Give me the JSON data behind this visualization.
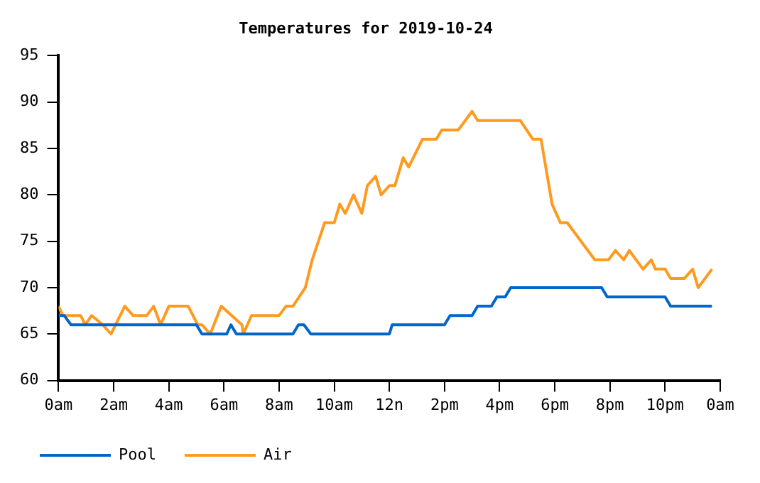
{
  "chart_data": {
    "type": "line",
    "title": "Temperatures for 2019-10-24",
    "xlim": [
      "2019-10-24T00:00",
      "2019-10-25T00:00"
    ],
    "xticks": [
      {
        "value": "2019-10-24T00:00",
        "label": "0am"
      },
      {
        "value": "2019-10-24T02:00",
        "label": "2am"
      },
      {
        "value": "2019-10-24T04:00",
        "label": "4am"
      },
      {
        "value": "2019-10-24T06:00",
        "label": "6am"
      },
      {
        "value": "2019-10-24T08:00",
        "label": "8am"
      },
      {
        "value": "2019-10-24T10:00",
        "label": "10am"
      },
      {
        "value": "2019-10-24T12:00",
        "label": "12n"
      },
      {
        "value": "2019-10-24T14:00",
        "label": "2pm"
      },
      {
        "value": "2019-10-24T16:00",
        "label": "4pm"
      },
      {
        "value": "2019-10-24T18:00",
        "label": "6pm"
      },
      {
        "value": "2019-10-24T20:00",
        "label": "8pm"
      },
      {
        "value": "2019-10-24T22:00",
        "label": "10pm"
      },
      {
        "value": "2019-10-25T00:00",
        "label": "0am"
      }
    ],
    "ylim": [
      60,
      95
    ],
    "yticks": [
      60,
      65,
      70,
      75,
      80,
      85,
      90,
      95
    ],
    "grid": false,
    "legend": "bottom left",
    "marker": "none",
    "line_style": "solid",
    "series": [
      {
        "name": "Pool",
        "color": "#0066cc",
        "x": [
          "2019-10-24T00:00",
          "2019-10-24T00:12",
          "2019-10-24T00:27",
          "2019-10-24T05:00",
          "2019-10-24T05:12",
          "2019-10-24T06:06",
          "2019-10-24T06:15",
          "2019-10-24T06:27",
          "2019-10-24T08:30",
          "2019-10-24T08:42",
          "2019-10-24T08:54",
          "2019-10-24T09:09",
          "2019-10-24T12:00",
          "2019-10-24T12:06",
          "2019-10-24T14:00",
          "2019-10-24T14:12",
          "2019-10-24T15:00",
          "2019-10-24T15:12",
          "2019-10-24T15:42",
          "2019-10-24T15:54",
          "2019-10-24T16:12",
          "2019-10-24T16:24",
          "2019-10-24T19:42",
          "2019-10-24T19:54",
          "2019-10-24T22:00",
          "2019-10-24T22:12",
          "2019-10-24T23:42"
        ],
        "values": [
          67,
          67,
          66,
          66,
          65,
          65,
          66,
          65,
          65,
          66,
          66,
          65,
          65,
          66,
          66,
          67,
          67,
          68,
          68,
          69,
          69,
          70,
          70,
          69,
          69,
          68,
          68
        ]
      },
      {
        "name": "Air",
        "color": "#ff9a1f",
        "x": [
          "2019-10-24T00:00",
          "2019-10-24T00:09",
          "2019-10-24T00:48",
          "2019-10-24T00:58",
          "2019-10-24T01:12",
          "2019-10-24T01:36",
          "2019-10-24T01:54",
          "2019-10-24T02:24",
          "2019-10-24T02:42",
          "2019-10-24T03:12",
          "2019-10-24T03:27",
          "2019-10-24T03:42",
          "2019-10-24T04:00",
          "2019-10-24T04:42",
          "2019-10-24T05:03",
          "2019-10-24T05:12",
          "2019-10-24T05:30",
          "2019-10-24T05:54",
          "2019-10-24T06:39",
          "2019-10-24T06:42",
          "2019-10-24T07:00",
          "2019-10-24T08:00",
          "2019-10-24T08:15",
          "2019-10-24T08:30",
          "2019-10-24T08:57",
          "2019-10-24T09:12",
          "2019-10-24T09:39",
          "2019-10-24T10:00",
          "2019-10-24T10:12",
          "2019-10-24T10:24",
          "2019-10-24T10:42",
          "2019-10-24T11:00",
          "2019-10-24T11:12",
          "2019-10-24T11:30",
          "2019-10-24T11:42",
          "2019-10-24T12:00",
          "2019-10-24T12:12",
          "2019-10-24T12:30",
          "2019-10-24T12:42",
          "2019-10-24T13:12",
          "2019-10-24T13:42",
          "2019-10-24T13:54",
          "2019-10-24T14:30",
          "2019-10-24T15:00",
          "2019-10-24T15:12",
          "2019-10-24T16:45",
          "2019-10-24T17:12",
          "2019-10-24T17:30",
          "2019-10-24T17:54",
          "2019-10-24T18:12",
          "2019-10-24T18:27",
          "2019-10-24T19:12",
          "2019-10-24T19:27",
          "2019-10-24T19:57",
          "2019-10-24T20:12",
          "2019-10-24T20:30",
          "2019-10-24T20:42",
          "2019-10-24T21:12",
          "2019-10-24T21:30",
          "2019-10-24T21:39",
          "2019-10-24T22:00",
          "2019-10-24T22:12",
          "2019-10-24T22:42",
          "2019-10-24T23:00",
          "2019-10-24T23:12",
          "2019-10-24T23:42"
        ],
        "values": [
          68,
          67,
          67,
          66,
          67,
          66,
          65,
          68,
          67,
          67,
          68,
          66,
          68,
          68,
          66,
          66,
          65,
          68,
          66,
          65,
          67,
          67,
          68,
          68,
          70,
          73,
          77,
          77,
          79,
          78,
          80,
          78,
          81,
          82,
          80,
          81,
          81,
          84,
          83,
          86,
          86,
          87,
          87,
          89,
          88,
          88,
          86,
          86,
          79,
          77,
          77,
          74,
          73,
          73,
          74,
          73,
          74,
          72,
          73,
          72,
          72,
          71,
          71,
          72,
          70,
          72
        ]
      }
    ]
  }
}
